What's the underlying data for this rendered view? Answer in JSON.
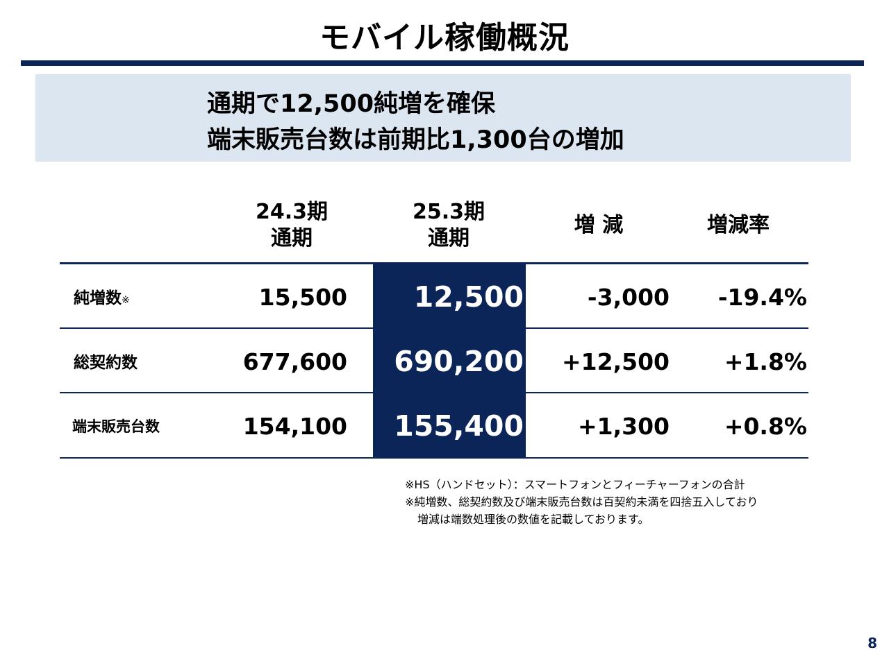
{
  "title": "モバイル稼働概況",
  "summary": {
    "line1": "通期で12,500純増を確保",
    "line2": "端末販売台数は前期比1,300台の増加"
  },
  "table": {
    "headers": {
      "prev_line1": "24.3期",
      "prev_line2": "通期",
      "curr_line1": "25.3期",
      "curr_line2": "通期",
      "diff": "増 減",
      "rate": "増減率"
    },
    "rows": [
      {
        "label": "純増数",
        "mark": "※",
        "prev": "15,500",
        "curr": "12,500",
        "diff": "-3,000",
        "rate": "-19.4%"
      },
      {
        "label": "総契約数",
        "mark": "",
        "prev": "677,600",
        "curr": "690,200",
        "diff": "+12,500",
        "rate": "+1.8%"
      },
      {
        "label": "端末販売台数",
        "mark": "",
        "prev": "154,100",
        "curr": "155,400",
        "diff": "+1,300",
        "rate": "+0.8%"
      }
    ]
  },
  "notes": {
    "line1": "※HS（ハンドセット）：スマートフォンとフィーチャーフォンの合計",
    "line2": "※純増数、総契約数及び端末販売台数は百契約未満を四捨五入しており",
    "line3": "増減は端数処理後の数値を記載しております。"
  },
  "page_number": "8",
  "colors": {
    "navy": "#0b2559",
    "summary_bg": "#dce6f1"
  }
}
